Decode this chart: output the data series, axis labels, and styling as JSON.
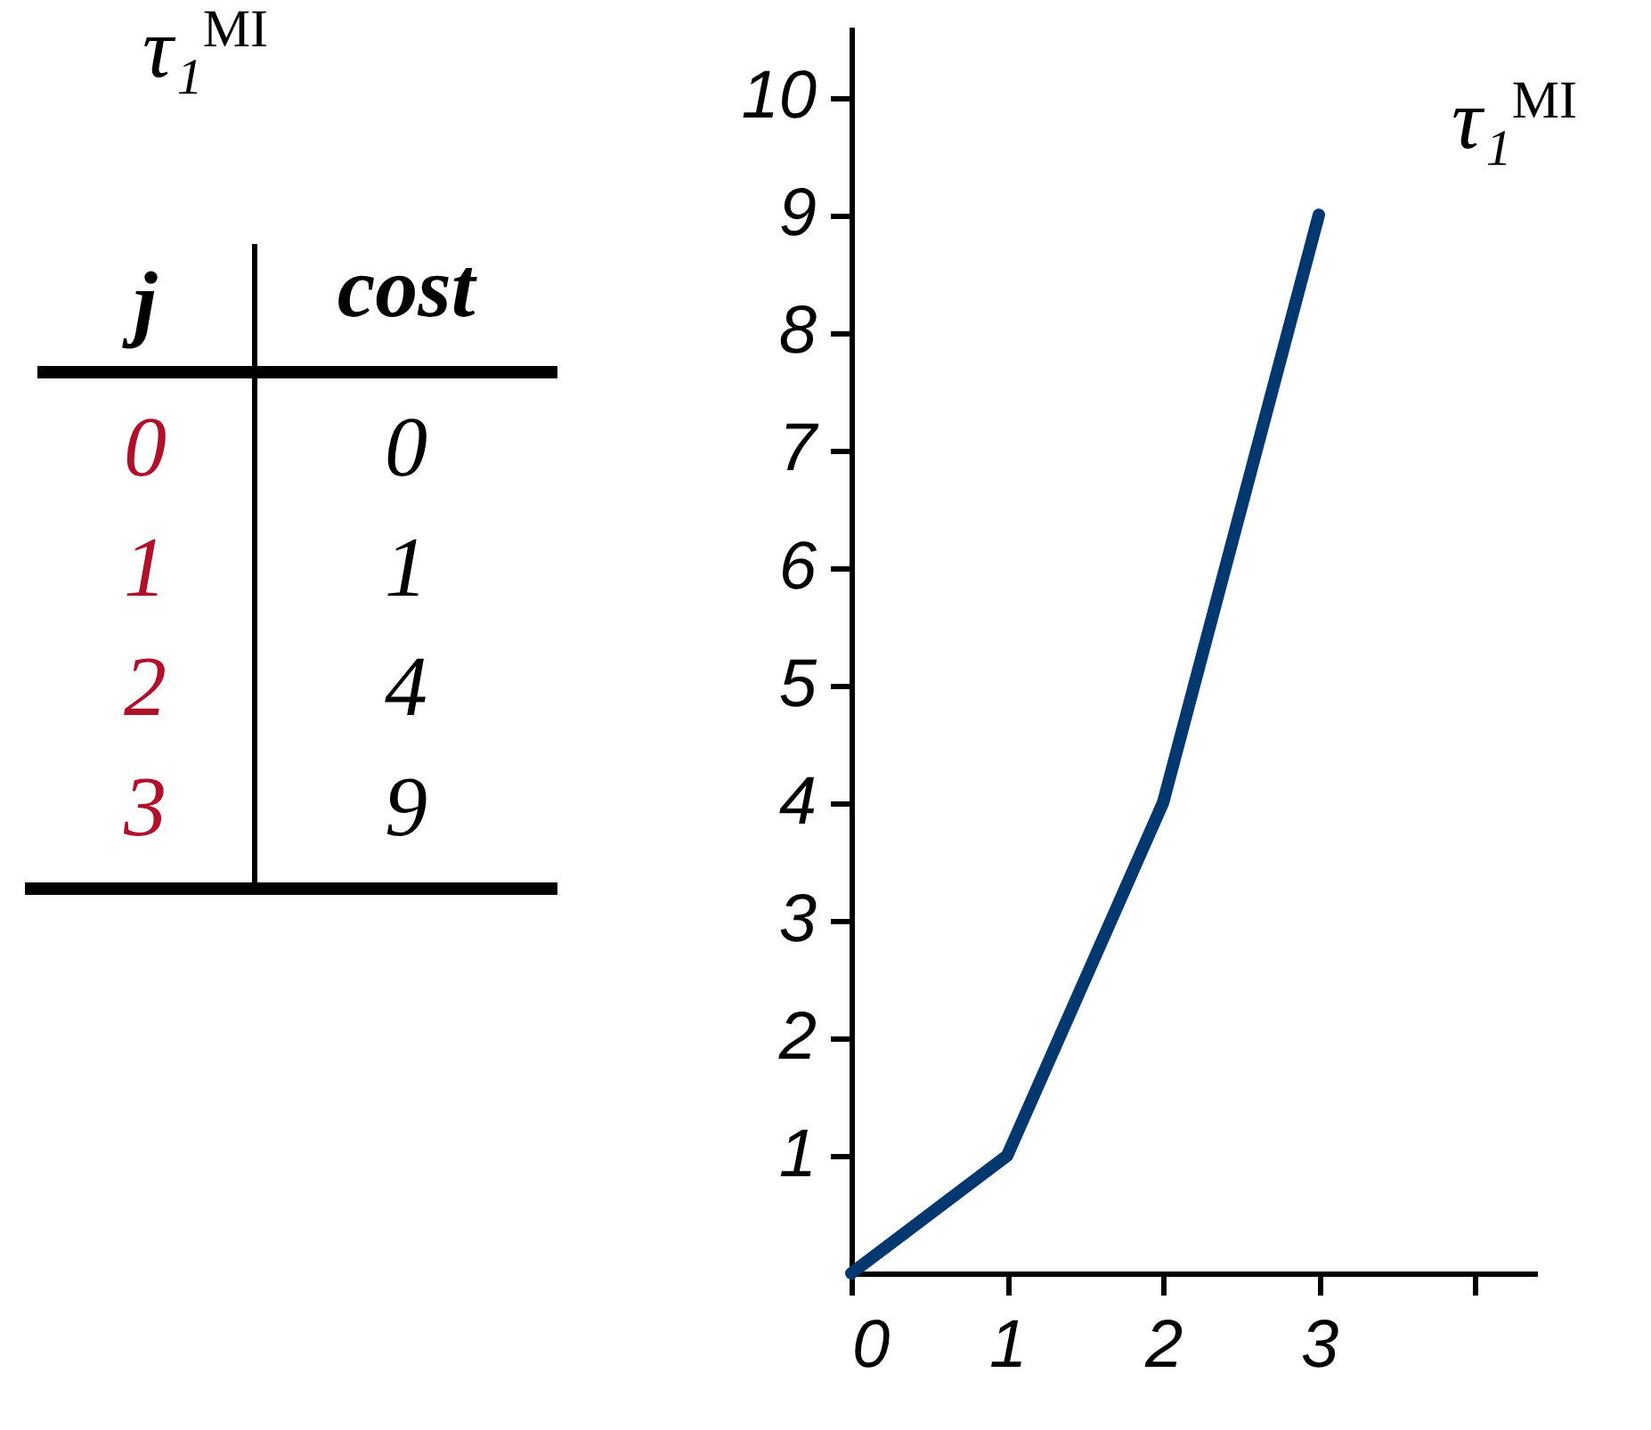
{
  "chart_data": [
    {
      "type": "heatmap",
      "title": "τ₁$^{MI}$",
      "ylabel": "j",
      "categories": [
        "cost"
      ],
      "y_categories": [
        "0",
        "1",
        "2",
        "3"
      ],
      "cells": [
        [
          0
        ],
        [
          1
        ],
        [
          4
        ],
        [
          9
        ]
      ],
      "data_labels": true
    },
    {
      "type": "line",
      "x": [
        0,
        1,
        2,
        3
      ],
      "series": [
        {
          "name": "τ₁$^{MI}$",
          "color": "#00386f",
          "values": [
            0,
            1,
            4,
            9
          ]
        }
      ],
      "xlim": [
        0,
        4.4
      ],
      "xticks": [
        0,
        1,
        2,
        3,
        {
          "value": 4,
          "label": null
        }
      ],
      "ylim": [
        0,
        10.6
      ],
      "yticks": [
        1,
        2,
        3,
        4,
        5,
        6,
        7,
        8,
        9,
        10
      ]
    }
  ]
}
